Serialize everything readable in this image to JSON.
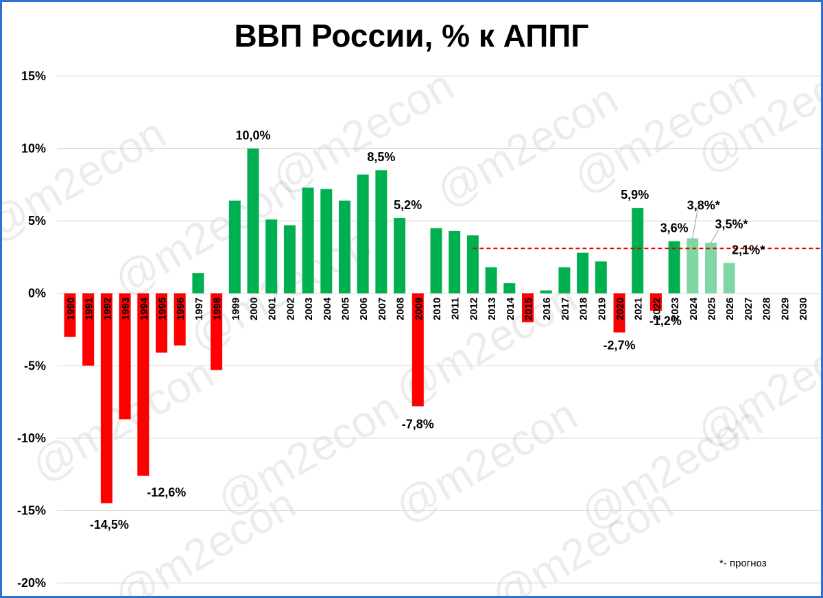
{
  "title": "ВВП России, % к АППГ",
  "note": "*- прогноз",
  "watermark": "@m2econ",
  "colors": {
    "positive": "#00b050",
    "negative": "#ff0000",
    "forecast": "#7fd8a4",
    "grid": "#d9d9d9",
    "reference_line": "#e00000",
    "frame": "#2f6fd6"
  },
  "chart_data": {
    "type": "bar",
    "title": "ВВП России, % к АППГ",
    "ylim": [
      -20,
      15
    ],
    "yticks": [
      15,
      10,
      5,
      0,
      -5,
      -10,
      -15,
      -20
    ],
    "ytick_labels": [
      "15%",
      "10%",
      "5%",
      "0%",
      "-5%",
      "-10%",
      "-15%",
      "-20%"
    ],
    "grid": true,
    "categories": [
      "1990",
      "1991",
      "1992",
      "1993",
      "1994",
      "1995",
      "1996",
      "1997",
      "1998",
      "1999",
      "2000",
      "2001",
      "2002",
      "2003",
      "2004",
      "2005",
      "2006",
      "2007",
      "2008",
      "2009",
      "2010",
      "2011",
      "2012",
      "2013",
      "2014",
      "2015",
      "2016",
      "2017",
      "2018",
      "2019",
      "2020",
      "2021",
      "2022",
      "2023",
      "2024",
      "2025",
      "2026",
      "2027",
      "2028",
      "2029",
      "2030"
    ],
    "values": [
      -3.0,
      -5.0,
      -14.5,
      -8.7,
      -12.6,
      -4.1,
      -3.6,
      1.4,
      -5.3,
      6.4,
      10.0,
      5.1,
      4.7,
      7.3,
      7.2,
      6.4,
      8.2,
      8.5,
      5.2,
      -7.8,
      4.5,
      4.3,
      4.0,
      1.8,
      0.7,
      -2.0,
      0.2,
      1.8,
      2.8,
      2.2,
      -2.7,
      5.9,
      -1.2,
      3.6,
      3.8,
      3.5,
      2.1,
      null,
      null,
      null,
      null
    ],
    "forecast_from": "2024",
    "data_labels": {
      "1992": "-14,5%",
      "1994": "-12,6%",
      "2000": "10,0%",
      "2007": "8,5%",
      "2008": "5,2%",
      "2009": "-7,8%",
      "2020": "-2,7%",
      "2021": "5,9%",
      "2022": "-1,2%",
      "2023": "3,6%",
      "2024": "3,8%*",
      "2025": "3,5%*",
      "2026": "2,1%*"
    },
    "reference_line": {
      "value": 3.1,
      "from": "2012"
    }
  }
}
